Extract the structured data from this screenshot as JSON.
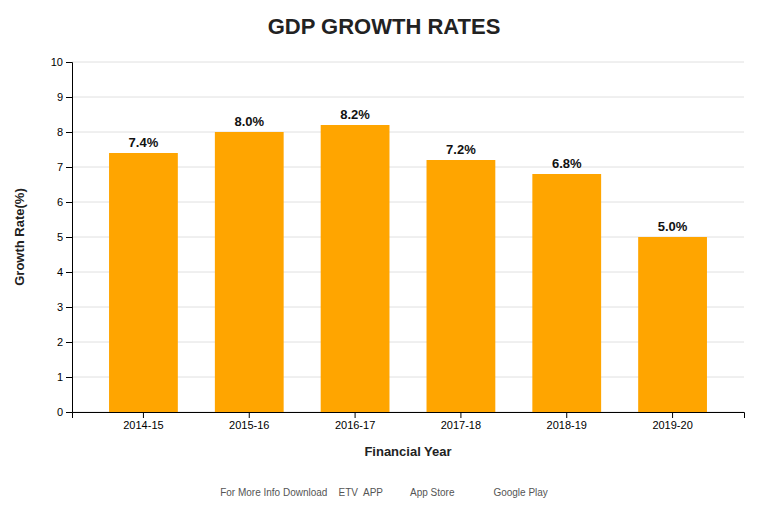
{
  "chart_data": {
    "type": "bar",
    "title": "GDP GROWTH RATES",
    "xlabel": "Financial Year",
    "ylabel": "Growth Rate(%)",
    "categories": [
      "2014-15",
      "2015-16",
      "2016-17",
      "2017-18",
      "2018-19",
      "2019-20"
    ],
    "values": [
      7.4,
      8.0,
      8.2,
      7.2,
      6.8,
      5.0
    ],
    "value_labels": [
      "7.4%",
      "8.0%",
      "8.2%",
      "7.2%",
      "6.8%",
      "5.0%"
    ],
    "color": "#FFA500",
    "ylim": [
      0,
      10
    ],
    "yticks": [
      0,
      1,
      2,
      3,
      4,
      5,
      6,
      7,
      8,
      9,
      10
    ],
    "grid": true,
    "data_labels": true,
    "annotations": [
      "For More Info Download    ETV  APP          App Store              Google Play"
    ]
  }
}
